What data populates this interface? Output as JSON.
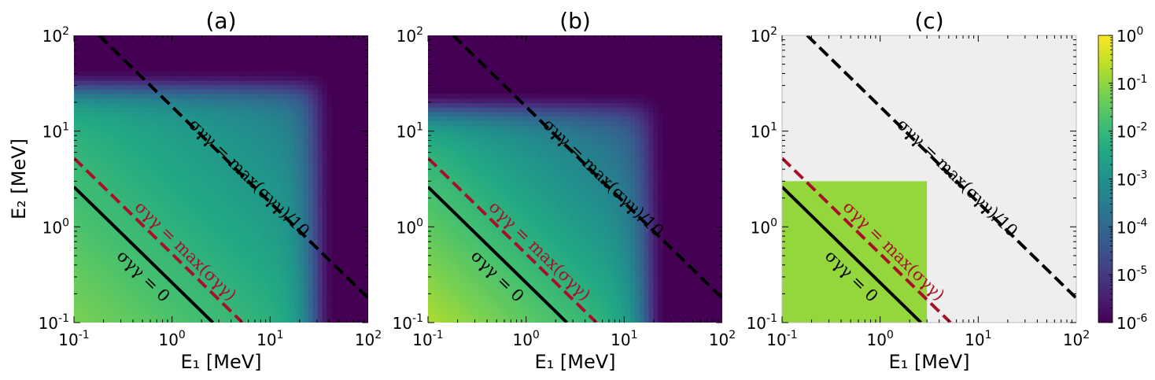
{
  "chart_data": [
    {
      "type": "heatmap",
      "title": "(a)",
      "xlabel": "E₁ [MeV]",
      "ylabel": "E₂ [MeV]",
      "xscale": "log",
      "yscale": "log",
      "xlim": [
        0.1,
        100
      ],
      "ylim": [
        0.1,
        100
      ],
      "x_ticks": [
        "10^-1",
        "10^0",
        "10^1",
        "10^2"
      ],
      "y_ticks": [
        "10^-1",
        "10^0",
        "10^1",
        "10^2"
      ],
      "lines": [
        {
          "label": "σγγ = 0",
          "style": "solid",
          "color": "#000000",
          "points": [
            [
              0.1,
              2.61
            ],
            [
              2.61,
              0.1
            ]
          ]
        },
        {
          "label": "σγγ = max(σγγ)",
          "style": "dashed",
          "color": "#a8102a",
          "points": [
            [
              0.1,
              5.22
            ],
            [
              5.22,
              0.1
            ]
          ]
        },
        {
          "label": "σγγ = max(σγγ)/10",
          "style": "dashed",
          "color": "#000000",
          "points": [
            [
              0.18,
              100
            ],
            [
              100,
              0.18
            ]
          ]
        }
      ],
      "field": {
        "kind": "smooth",
        "cutoff_MeV": 30
      }
    },
    {
      "type": "heatmap",
      "title": "(b)",
      "xlabel": "E₁ [MeV]",
      "ylabel": "",
      "xscale": "log",
      "yscale": "log",
      "xlim": [
        0.1,
        100
      ],
      "ylim": [
        0.1,
        100
      ],
      "x_ticks": [
        "10^-1",
        "10^0",
        "10^1",
        "10^2"
      ],
      "y_ticks": [
        "10^-1",
        "10^0",
        "10^1",
        "10^2"
      ],
      "lines": [
        {
          "label": "σγγ = 0",
          "style": "solid",
          "color": "#000000",
          "points": [
            [
              0.1,
              2.61
            ],
            [
              2.61,
              0.1
            ]
          ]
        },
        {
          "label": "σγγ = max(σγγ)",
          "style": "dashed",
          "color": "#a8102a",
          "points": [
            [
              0.1,
              5.22
            ],
            [
              5.22,
              0.1
            ]
          ]
        },
        {
          "label": "σγγ = max(σγγ)/10",
          "style": "dashed",
          "color": "#000000",
          "points": [
            [
              0.18,
              100
            ],
            [
              100,
              0.18
            ]
          ]
        }
      ],
      "field": {
        "kind": "smooth",
        "cutoff_MeV": 18
      }
    },
    {
      "type": "heatmap",
      "title": "(c)",
      "xlabel": "E₁ [MeV]",
      "ylabel": "",
      "xscale": "log",
      "yscale": "log",
      "xlim": [
        0.1,
        100
      ],
      "ylim": [
        0.1,
        100
      ],
      "x_ticks": [
        "10^-1",
        "10^0",
        "10^1",
        "10^2"
      ],
      "y_ticks": [
        "10^-1",
        "10^0",
        "10^1",
        "10^2"
      ],
      "lines": [
        {
          "label": "σγγ = 0",
          "style": "solid",
          "color": "#000000",
          "points": [
            [
              0.1,
              2.61
            ],
            [
              2.61,
              0.1
            ]
          ]
        },
        {
          "label": "σγγ = max(σγγ)",
          "style": "dashed",
          "color": "#a8102a",
          "points": [
            [
              0.1,
              5.22
            ],
            [
              5.22,
              0.1
            ]
          ]
        },
        {
          "label": "σγγ = max(σγγ)/10",
          "style": "dashed",
          "color": "#000000",
          "points": [
            [
              0.18,
              100
            ],
            [
              100,
              0.18
            ]
          ]
        }
      ],
      "field": {
        "kind": "box",
        "box_xmax_MeV": 3.0,
        "box_ymax_MeV": 3.0,
        "box_color": "#94d73c",
        "background": "#eeeeee"
      }
    }
  ],
  "colorbar": {
    "scale": "log",
    "lim": [
      1e-06,
      1
    ],
    "ticks": [
      "10^-6",
      "10^-5",
      "10^-4",
      "10^-3",
      "10^-2",
      "10^-1",
      "10^0"
    ],
    "colormap": "viridis"
  }
}
